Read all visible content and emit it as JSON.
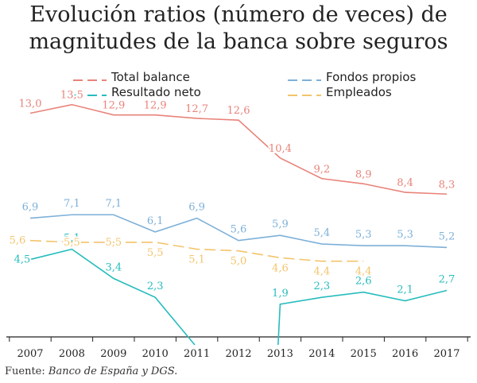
{
  "chart_data": {
    "type": "line",
    "title_line1": "Evolución ratios (número de veces) de",
    "title_line2": "magnitudes de la banca sobre seguros",
    "categories": [
      "2007",
      "2008",
      "2009",
      "2010",
      "2011",
      "2012",
      "2013",
      "2014",
      "2015",
      "2016",
      "2017"
    ],
    "ylim": [
      0,
      14.5
    ],
    "grid": false,
    "legend_position": "top",
    "series": [
      {
        "name": "Total balance",
        "color": "#e8837a",
        "dashed": false,
        "values": [
          13.0,
          13.5,
          12.9,
          12.9,
          12.7,
          12.6,
          10.4,
          9.2,
          8.9,
          8.4,
          8.3
        ],
        "labels": [
          "13,0",
          "13,5",
          "12,9",
          "12,9",
          "12,7",
          "12,6",
          "10,4",
          "9,2",
          "8,9",
          "8,4",
          "8,3"
        ]
      },
      {
        "name": "Fondos propios",
        "color": "#7db0d8",
        "dashed": false,
        "values": [
          6.9,
          7.1,
          7.1,
          6.1,
          6.9,
          5.6,
          5.9,
          5.4,
          5.3,
          5.3,
          5.2
        ],
        "labels": [
          "6,9",
          "7,1",
          "7,1",
          "6,1",
          "6,9",
          "5,6",
          "5,9",
          "5,4",
          "5,3",
          "5,3",
          "5,2"
        ]
      },
      {
        "name": "Resultado neto",
        "color": "#27bcbd",
        "dashed": false,
        "values": [
          4.5,
          5.1,
          3.4,
          2.3,
          null,
          null,
          1.9,
          2.3,
          2.6,
          2.1,
          2.7
        ],
        "labels": [
          "4,5",
          "5,1",
          "3,4",
          "2,3",
          "",
          "",
          "1,9",
          "2,3",
          "2,6",
          "2,1",
          "2,7"
        ]
      },
      {
        "name": "Empleados",
        "color": "#f3c46c",
        "dashed": true,
        "values": [
          5.6,
          5.5,
          5.5,
          5.5,
          5.1,
          5.0,
          4.6,
          4.4,
          4.4,
          null,
          null
        ],
        "labels": [
          "5,6",
          "5,5",
          "5,5",
          "5,5",
          "5,1",
          "5,0",
          "4,6",
          "4,4",
          "4,4",
          "",
          ""
        ]
      }
    ]
  },
  "source": {
    "prefix": "Fuente: ",
    "text": "Banco de España y DGS."
  }
}
